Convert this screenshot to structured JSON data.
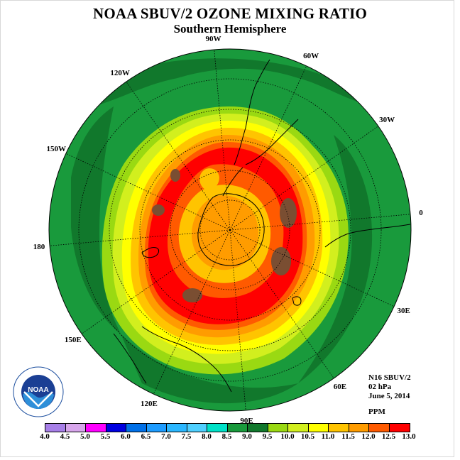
{
  "header": {
    "title": "NOAA SBUV/2 OZONE MIXING RATIO",
    "subtitle": "Southern Hemisphere"
  },
  "map": {
    "projection": "south polar stereographic",
    "longitude_labels": [
      "90W",
      "60W",
      "30W",
      "0",
      "30E",
      "60E",
      "90E",
      "120E",
      "150E",
      "180",
      "150W",
      "120W"
    ],
    "ozone_regions": [
      {
        "level": "8.5–9.0 ppm",
        "area": "outer hemisphere background"
      },
      {
        "level": "9.0–9.5 ppm",
        "area": "transition ring"
      },
      {
        "level": "12.0–12.5 ppm",
        "area": "main mid-latitude ring"
      },
      {
        "level": "12.5–13.0 ppm",
        "area": "local maxima",
        "count": 5
      },
      {
        "level": "11.0–11.5 ppm",
        "area": "polar core over Antarctica"
      }
    ]
  },
  "info": {
    "instrument": "N16 SBUV/2",
    "pressure_level": "02 hPa",
    "date": "June 5, 2014",
    "unit": "PPM"
  },
  "colorbar": {
    "ticks": [
      "4.0",
      "4.5",
      "5.0",
      "5.5",
      "6.0",
      "6.5",
      "7.0",
      "7.5",
      "8.0",
      "8.5",
      "9.0",
      "9.5",
      "10.0",
      "10.5",
      "11.0",
      "11.5",
      "12.0",
      "12.5",
      "13.0"
    ],
    "colors": [
      "#a77fe8",
      "#d8a6ec",
      "#ff00ff",
      "#0000e0",
      "#0070e8",
      "#1e9cff",
      "#2bb7ff",
      "#4fd0ff",
      "#00e2c8",
      "#199a3c",
      "#11782c",
      "#9ad912",
      "#d2ef1e",
      "#ffff00",
      "#ffc400",
      "#ff9c00",
      "#ff5a00",
      "#ff0000",
      "#7a4e32"
    ]
  },
  "logo": {
    "text": "NOAA",
    "ring_text": "NATIONAL OCEANIC AND ATMOSPHERIC ADMINISTRATION · U.S. DEPARTMENT OF COMMERCE"
  }
}
